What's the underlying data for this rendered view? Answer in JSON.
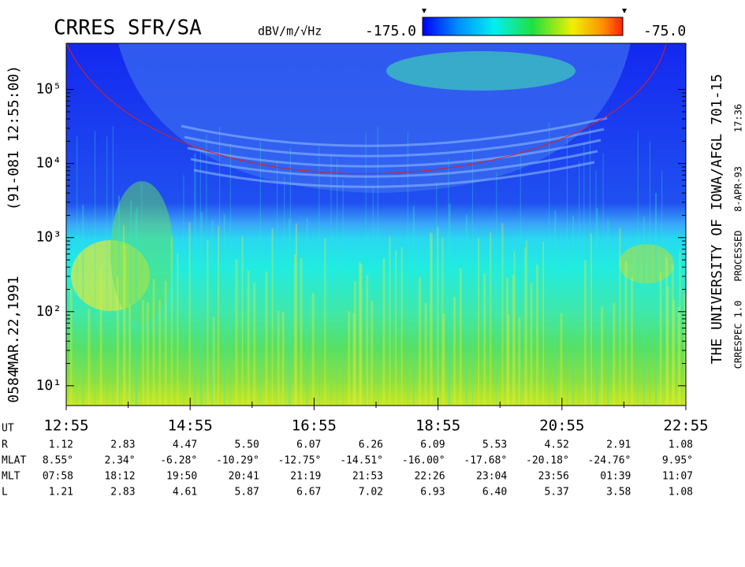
{
  "chart_data": {
    "type": "spectrogram",
    "title": "CRRES SFR/SA",
    "colorbar": {
      "label": "dBV/m/√Hz",
      "lim": [
        {
          "value": -175,
          "label": "-175.0"
        },
        {
          "value": -75,
          "label": "-75.0"
        }
      ]
    },
    "ylog": true,
    "ylim": [
      5.4,
      420000
    ],
    "yticks": [
      {
        "value": 10,
        "label": "10¹"
      },
      {
        "value": 100,
        "label": "10²"
      },
      {
        "value": 1000,
        "label": "10³"
      },
      {
        "value": 10000,
        "label": "10⁴"
      },
      {
        "value": 100000,
        "label": "10⁵"
      }
    ],
    "xlabel": "UT",
    "xticks": [
      "12:55",
      null,
      "14:55",
      null,
      "16:55",
      null,
      "18:55",
      null,
      "20:55",
      null,
      "22:55"
    ],
    "ephemeris": [
      {
        "name": "R",
        "values": [
          "1.12",
          "2.83",
          "4.47",
          "5.50",
          "6.07",
          "6.26",
          "6.09",
          "5.53",
          "4.52",
          "2.91",
          "1.08"
        ]
      },
      {
        "name": "MLAT",
        "values": [
          "8.55°",
          "2.34°",
          "-6.28°",
          "-10.29°",
          "-12.75°",
          "-14.51°",
          "-16.00°",
          "-17.68°",
          "-20.18°",
          "-24.76°",
          "9.95°"
        ]
      },
      {
        "name": "MLT",
        "values": [
          "07:58",
          "18:12",
          "19:50",
          "20:41",
          "21:19",
          "21:53",
          "22:26",
          "23:04",
          "23:56",
          "01:39",
          "11:07"
        ]
      },
      {
        "name": "L",
        "values": [
          "1.21",
          "2.83",
          "4.61",
          "5.87",
          "6.67",
          "7.02",
          "6.93",
          "6.40",
          "5.37",
          "3.58",
          "1.08"
        ]
      }
    ],
    "left_text": [
      "0584",
      "MAR.22,1991",
      "(91-081 12:55:00)"
    ],
    "right_text": [
      "THE UNIVERSITY OF IOWA/AFGL 701-15",
      "CRRESPEC 1.0",
      "PROCESSED",
      "8-APR-93",
      "17:36"
    ]
  }
}
